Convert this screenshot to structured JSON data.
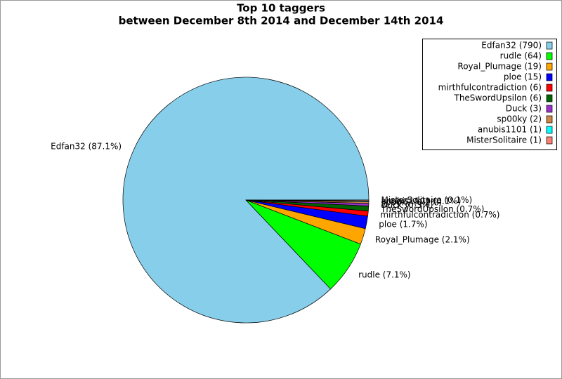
{
  "chart_data": {
    "type": "pie",
    "title": "Top 10 taggers",
    "subtitle": "between December 8th 2014 and December 14th 2014",
    "categories": [
      "Edfan32",
      "rudle",
      "Royal_Plumage",
      "ploe",
      "mirthfulcontradiction",
      "TheSwordUpsilon",
      "Duck",
      "sp00ky",
      "anubis1101",
      "MisterSolitaire"
    ],
    "values": [
      790,
      64,
      19,
      15,
      6,
      6,
      3,
      2,
      1,
      1
    ],
    "value_labels": [
      "Edfan32 (790)",
      "rudle (64)",
      "Royal_Plumage (19)",
      "ploe (15)",
      "mirthfulcontradiction (6)",
      "TheSwordUpsilon (6)",
      "Duck (3)",
      "sp00ky (2)",
      "anubis1101 (1)",
      "MisterSolitaire (1)"
    ],
    "slice_labels": [
      "Edfan32 (87.1%)",
      "rudle (7.1%)",
      "Royal_Plumage (2.1%)",
      "ploe (1.7%)",
      "mirthfulcontradiction (0.7%)",
      "TheSwordUpsilon (0.7%)",
      "Duck (0.3%)",
      "sp00ky (0.2%)",
      "anubis1101 (0.1%)",
      "MisterSolitaire (0.1%)"
    ],
    "colors": [
      "#87ceeb",
      "#00ff00",
      "#ffa500",
      "#0000ff",
      "#ff0000",
      "#006400",
      "#9932cc",
      "#cd853f",
      "#00ffff",
      "#fa8072"
    ],
    "legend": "upper right"
  }
}
